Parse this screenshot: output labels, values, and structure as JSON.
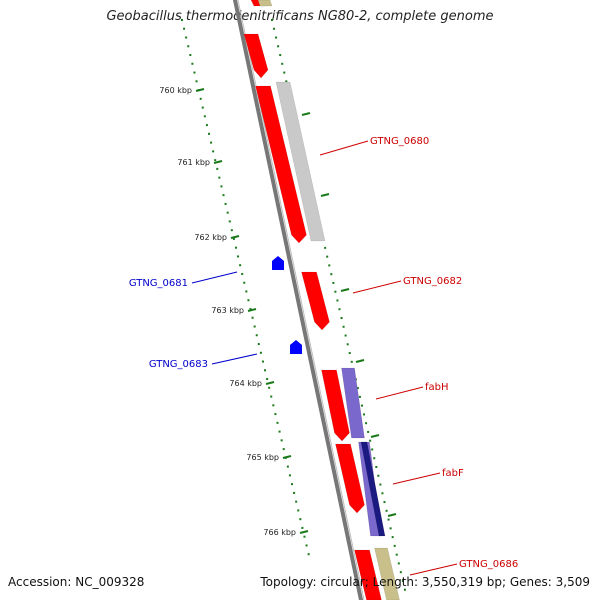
{
  "title": "Geobacillus thermodenitrificans NG80-2, complete genome",
  "footer": {
    "accession": "Accession: NC_009328",
    "summary": "Topology: circular; Length: 3,550,319 bp; Genes: 3,509"
  },
  "ruler": [
    {
      "kbp": 760,
      "label": "760 kbp"
    },
    {
      "kbp": 761,
      "label": "761 kbp"
    },
    {
      "kbp": 762,
      "label": "762 kbp"
    },
    {
      "kbp": 763,
      "label": "763 kbp"
    },
    {
      "kbp": 764,
      "label": "764 kbp"
    },
    {
      "kbp": 765,
      "label": "765 kbp"
    },
    {
      "kbp": 766,
      "label": "766 kbp"
    }
  ],
  "gene_labels": [
    {
      "name": "GTNG_0680",
      "strand": "forward",
      "color": "#cc0000"
    },
    {
      "name": "GTNG_0681",
      "strand": "reverse",
      "color": "#0000cc"
    },
    {
      "name": "GTNG_0682",
      "strand": "forward",
      "color": "#cc0000"
    },
    {
      "name": "GTNG_0683",
      "strand": "reverse",
      "color": "#0000cc"
    },
    {
      "name": "fabH",
      "strand": "forward",
      "color": "#cc0000"
    },
    {
      "name": "fabF",
      "strand": "forward",
      "color": "#cc0000"
    },
    {
      "name": "GTNG_0686",
      "strand": "forward",
      "color": "#cc0000"
    }
  ],
  "colors": {
    "cds": "#ff0000",
    "reverse_cds": "#0000ff",
    "backbone": "#777777",
    "tick": "#1a7a1a",
    "gc": "#c9c9c9",
    "purple": "#7b68cc",
    "navy": "#1a1a80",
    "khaki": "#c8bf8a"
  }
}
